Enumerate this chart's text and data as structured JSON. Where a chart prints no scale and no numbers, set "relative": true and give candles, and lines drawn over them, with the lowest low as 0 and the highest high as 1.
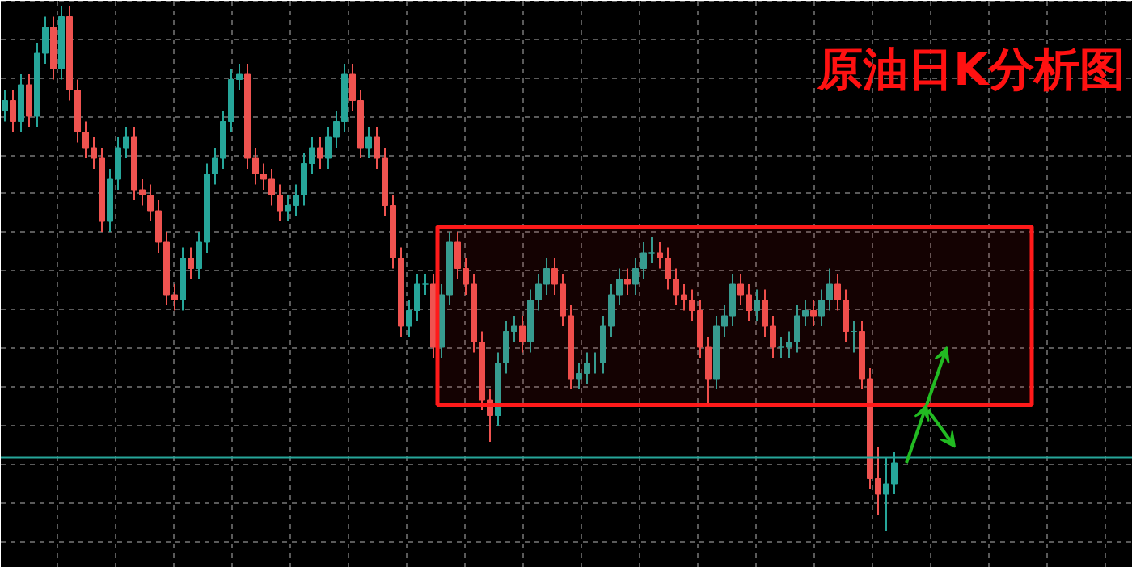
{
  "chart_data": {
    "type": "candlestick",
    "title": "原油日K分析图",
    "relative": true,
    "grid": true,
    "categories": [
      null,
      null,
      null,
      null,
      null,
      null,
      null,
      null,
      null,
      null,
      null,
      null,
      null,
      null,
      null,
      null,
      null,
      null,
      null,
      null,
      null,
      null,
      null,
      null,
      null,
      null,
      null,
      null,
      null,
      null,
      null,
      null,
      null,
      null,
      null,
      null,
      null,
      null,
      null,
      null,
      null,
      null,
      null,
      null,
      null,
      null,
      null,
      null,
      null,
      null,
      null,
      null,
      null,
      null,
      null,
      null,
      null,
      null,
      null,
      null,
      null,
      null,
      null,
      null,
      null,
      null,
      null,
      null,
      null,
      null,
      null,
      null,
      null,
      null,
      null,
      null,
      null,
      null,
      null,
      null,
      null,
      null,
      null,
      null,
      null,
      null,
      null,
      null,
      null,
      null,
      null,
      null,
      null,
      null,
      null,
      null,
      null,
      null,
      null,
      null,
      null,
      null,
      null,
      null,
      null,
      null,
      null,
      null,
      null,
      null,
      null
    ],
    "ohlc": [
      [
        0.8,
        0.84,
        0.78,
        0.82
      ],
      [
        0.82,
        0.84,
        0.76,
        0.78
      ],
      [
        0.78,
        0.87,
        0.76,
        0.85
      ],
      [
        0.85,
        0.87,
        0.77,
        0.79
      ],
      [
        0.79,
        0.93,
        0.77,
        0.91
      ],
      [
        0.91,
        0.98,
        0.89,
        0.96
      ],
      [
        0.96,
        0.98,
        0.86,
        0.88
      ],
      [
        0.88,
        1.0,
        0.86,
        0.98
      ],
      [
        0.98,
        1.0,
        0.82,
        0.84
      ],
      [
        0.84,
        0.86,
        0.74,
        0.76
      ],
      [
        0.76,
        0.78,
        0.71,
        0.73
      ],
      [
        0.73,
        0.75,
        0.69,
        0.71
      ],
      [
        0.71,
        0.73,
        0.57,
        0.59
      ],
      [
        0.59,
        0.69,
        0.57,
        0.67
      ],
      [
        0.67,
        0.75,
        0.65,
        0.73
      ],
      [
        0.73,
        0.77,
        0.71,
        0.75
      ],
      [
        0.75,
        0.77,
        0.63,
        0.65
      ],
      [
        0.65,
        0.67,
        0.62,
        0.64
      ],
      [
        0.64,
        0.66,
        0.59,
        0.61
      ],
      [
        0.61,
        0.63,
        0.53,
        0.55
      ],
      [
        0.55,
        0.57,
        0.43,
        0.45
      ],
      [
        0.45,
        0.47,
        0.42,
        0.44
      ],
      [
        0.44,
        0.54,
        0.42,
        0.52
      ],
      [
        0.52,
        0.54,
        0.48,
        0.5
      ],
      [
        0.5,
        0.57,
        0.48,
        0.55
      ],
      [
        0.55,
        0.7,
        0.53,
        0.68
      ],
      [
        0.68,
        0.73,
        0.66,
        0.71
      ],
      [
        0.71,
        0.8,
        0.69,
        0.78
      ],
      [
        0.78,
        0.88,
        0.76,
        0.86
      ],
      [
        0.86,
        0.89,
        0.84,
        0.87
      ],
      [
        0.87,
        0.89,
        0.69,
        0.71
      ],
      [
        0.71,
        0.73,
        0.66,
        0.68
      ],
      [
        0.68,
        0.7,
        0.65,
        0.67
      ],
      [
        0.67,
        0.69,
        0.62,
        0.64
      ],
      [
        0.64,
        0.66,
        0.59,
        0.61
      ],
      [
        0.61,
        0.64,
        0.59,
        0.62
      ],
      [
        0.62,
        0.66,
        0.6,
        0.64
      ],
      [
        0.64,
        0.72,
        0.62,
        0.7
      ],
      [
        0.7,
        0.75,
        0.68,
        0.73
      ],
      [
        0.73,
        0.75,
        0.69,
        0.71
      ],
      [
        0.71,
        0.77,
        0.69,
        0.75
      ],
      [
        0.75,
        0.8,
        0.73,
        0.78
      ],
      [
        0.78,
        0.89,
        0.76,
        0.87
      ],
      [
        0.87,
        0.89,
        0.8,
        0.82
      ],
      [
        0.82,
        0.84,
        0.71,
        0.73
      ],
      [
        0.73,
        0.77,
        0.71,
        0.75
      ],
      [
        0.75,
        0.77,
        0.69,
        0.71
      ],
      [
        0.71,
        0.73,
        0.6,
        0.62
      ],
      [
        0.62,
        0.64,
        0.5,
        0.52
      ],
      [
        0.52,
        0.54,
        0.37,
        0.39
      ],
      [
        0.39,
        0.44,
        0.37,
        0.42
      ],
      [
        0.42,
        0.49,
        0.4,
        0.47
      ],
      [
        0.47,
        0.49,
        0.45,
        0.47
      ],
      [
        0.47,
        0.49,
        0.33,
        0.35
      ],
      [
        0.35,
        0.47,
        0.33,
        0.45
      ],
      [
        0.45,
        0.57,
        0.43,
        0.55
      ],
      [
        0.55,
        0.57,
        0.48,
        0.5
      ],
      [
        0.5,
        0.52,
        0.45,
        0.47
      ],
      [
        0.47,
        0.49,
        0.34,
        0.36
      ],
      [
        0.36,
        0.38,
        0.23,
        0.25
      ],
      [
        0.25,
        0.27,
        0.17,
        0.22
      ],
      [
        0.22,
        0.34,
        0.2,
        0.32
      ],
      [
        0.32,
        0.4,
        0.3,
        0.38
      ],
      [
        0.38,
        0.41,
        0.36,
        0.39
      ],
      [
        0.39,
        0.41,
        0.34,
        0.36
      ],
      [
        0.36,
        0.46,
        0.34,
        0.44
      ],
      [
        0.44,
        0.49,
        0.42,
        0.47
      ],
      [
        0.47,
        0.52,
        0.45,
        0.5
      ],
      [
        0.5,
        0.52,
        0.45,
        0.47
      ],
      [
        0.47,
        0.49,
        0.39,
        0.41
      ],
      [
        0.41,
        0.43,
        0.27,
        0.29
      ],
      [
        0.29,
        0.32,
        0.27,
        0.3
      ],
      [
        0.3,
        0.34,
        0.28,
        0.32
      ],
      [
        0.32,
        0.34,
        0.3,
        0.32
      ],
      [
        0.32,
        0.41,
        0.3,
        0.39
      ],
      [
        0.39,
        0.47,
        0.37,
        0.45
      ],
      [
        0.45,
        0.5,
        0.43,
        0.48
      ],
      [
        0.48,
        0.5,
        0.45,
        0.47
      ],
      [
        0.47,
        0.52,
        0.45,
        0.5
      ],
      [
        0.5,
        0.55,
        0.48,
        0.53
      ],
      [
        0.53,
        0.56,
        0.51,
        0.53
      ],
      [
        0.53,
        0.55,
        0.5,
        0.52
      ],
      [
        0.52,
        0.54,
        0.46,
        0.48
      ],
      [
        0.48,
        0.5,
        0.43,
        0.45
      ],
      [
        0.45,
        0.47,
        0.42,
        0.44
      ],
      [
        0.44,
        0.46,
        0.4,
        0.42
      ],
      [
        0.42,
        0.44,
        0.33,
        0.35
      ],
      [
        0.35,
        0.37,
        0.24,
        0.29
      ],
      [
        0.29,
        0.41,
        0.27,
        0.39
      ],
      [
        0.39,
        0.43,
        0.37,
        0.41
      ],
      [
        0.41,
        0.49,
        0.39,
        0.47
      ],
      [
        0.47,
        0.49,
        0.43,
        0.45
      ],
      [
        0.45,
        0.47,
        0.4,
        0.42
      ],
      [
        0.42,
        0.46,
        0.4,
        0.44
      ],
      [
        0.44,
        0.46,
        0.37,
        0.39
      ],
      [
        0.39,
        0.41,
        0.33,
        0.35
      ],
      [
        0.35,
        0.37,
        0.33,
        0.35
      ],
      [
        0.35,
        0.38,
        0.33,
        0.36
      ],
      [
        0.36,
        0.43,
        0.34,
        0.41
      ],
      [
        0.41,
        0.44,
        0.39,
        0.42
      ],
      [
        0.42,
        0.44,
        0.39,
        0.41
      ],
      [
        0.41,
        0.46,
        0.39,
        0.44
      ],
      [
        0.44,
        0.5,
        0.42,
        0.47
      ],
      [
        0.47,
        0.49,
        0.42,
        0.44
      ],
      [
        0.44,
        0.46,
        0.36,
        0.38
      ],
      [
        0.38,
        0.4,
        0.34,
        0.38
      ],
      [
        0.38,
        0.4,
        0.27,
        0.29
      ],
      [
        0.29,
        0.31,
        0.08,
        0.1
      ],
      [
        0.1,
        0.16,
        0.03,
        0.07
      ],
      [
        0.07,
        0.14,
        0.0,
        0.09
      ],
      [
        0.09,
        0.15,
        0.07,
        0.13
      ]
    ],
    "colors": [
      "#26a69a",
      "#ef5350",
      "#26a69a",
      "#ef5350",
      "#26a69a",
      "#26a69a",
      "#ef5350",
      "#26a69a",
      "#ef5350",
      "#ef5350",
      "#ef5350",
      "#ef5350",
      "#ef5350",
      "#26a69a",
      "#26a69a",
      "#26a69a",
      "#ef5350",
      "#ef5350",
      "#ef5350",
      "#ef5350",
      "#ef5350",
      "#ef5350",
      "#26a69a",
      "#ef5350",
      "#26a69a",
      "#26a69a",
      "#26a69a",
      "#26a69a",
      "#26a69a",
      "#26a69a",
      "#ef5350",
      "#ef5350",
      "#ef5350",
      "#ef5350",
      "#ef5350",
      "#26a69a",
      "#26a69a",
      "#26a69a",
      "#26a69a",
      "#ef5350",
      "#26a69a",
      "#26a69a",
      "#26a69a",
      "#ef5350",
      "#ef5350",
      "#26a69a",
      "#ef5350",
      "#ef5350",
      "#ef5350",
      "#ef5350",
      "#26a69a",
      "#26a69a",
      "#26a69a",
      "#ef5350",
      "#26a69a",
      "#26a69a",
      "#ef5350",
      "#ef5350",
      "#ef5350",
      "#ef5350",
      "#ef5350",
      "#26a69a",
      "#26a69a",
      "#26a69a",
      "#ef5350",
      "#26a69a",
      "#26a69a",
      "#26a69a",
      "#ef5350",
      "#ef5350",
      "#ef5350",
      "#26a69a",
      "#26a69a",
      "#26a69a",
      "#26a69a",
      "#26a69a",
      "#26a69a",
      "#ef5350",
      "#26a69a",
      "#26a69a",
      "#26a69a",
      "#ef5350",
      "#ef5350",
      "#ef5350",
      "#ef5350",
      "#ef5350",
      "#ef5350",
      "#ef5350",
      "#26a69a",
      "#26a69a",
      "#26a69a",
      "#ef5350",
      "#ef5350",
      "#26a69a",
      "#ef5350",
      "#ef5350",
      "#26a69a",
      "#26a69a",
      "#26a69a",
      "#26a69a",
      "#ef5350",
      "#26a69a",
      "#26a69a",
      "#ef5350",
      "#ef5350",
      "#26a69a",
      "#ef5350",
      "#ef5350",
      "#ef5350",
      "#26a69a",
      "#26a69a"
    ],
    "ref_lines": [
      {
        "axis": "y",
        "value": 0.14,
        "color": "#26a69a"
      }
    ],
    "bands": [
      {
        "axis": "y",
        "from": 0.24,
        "to": 0.58,
        "color": "#ff1a1a"
      }
    ]
  }
}
